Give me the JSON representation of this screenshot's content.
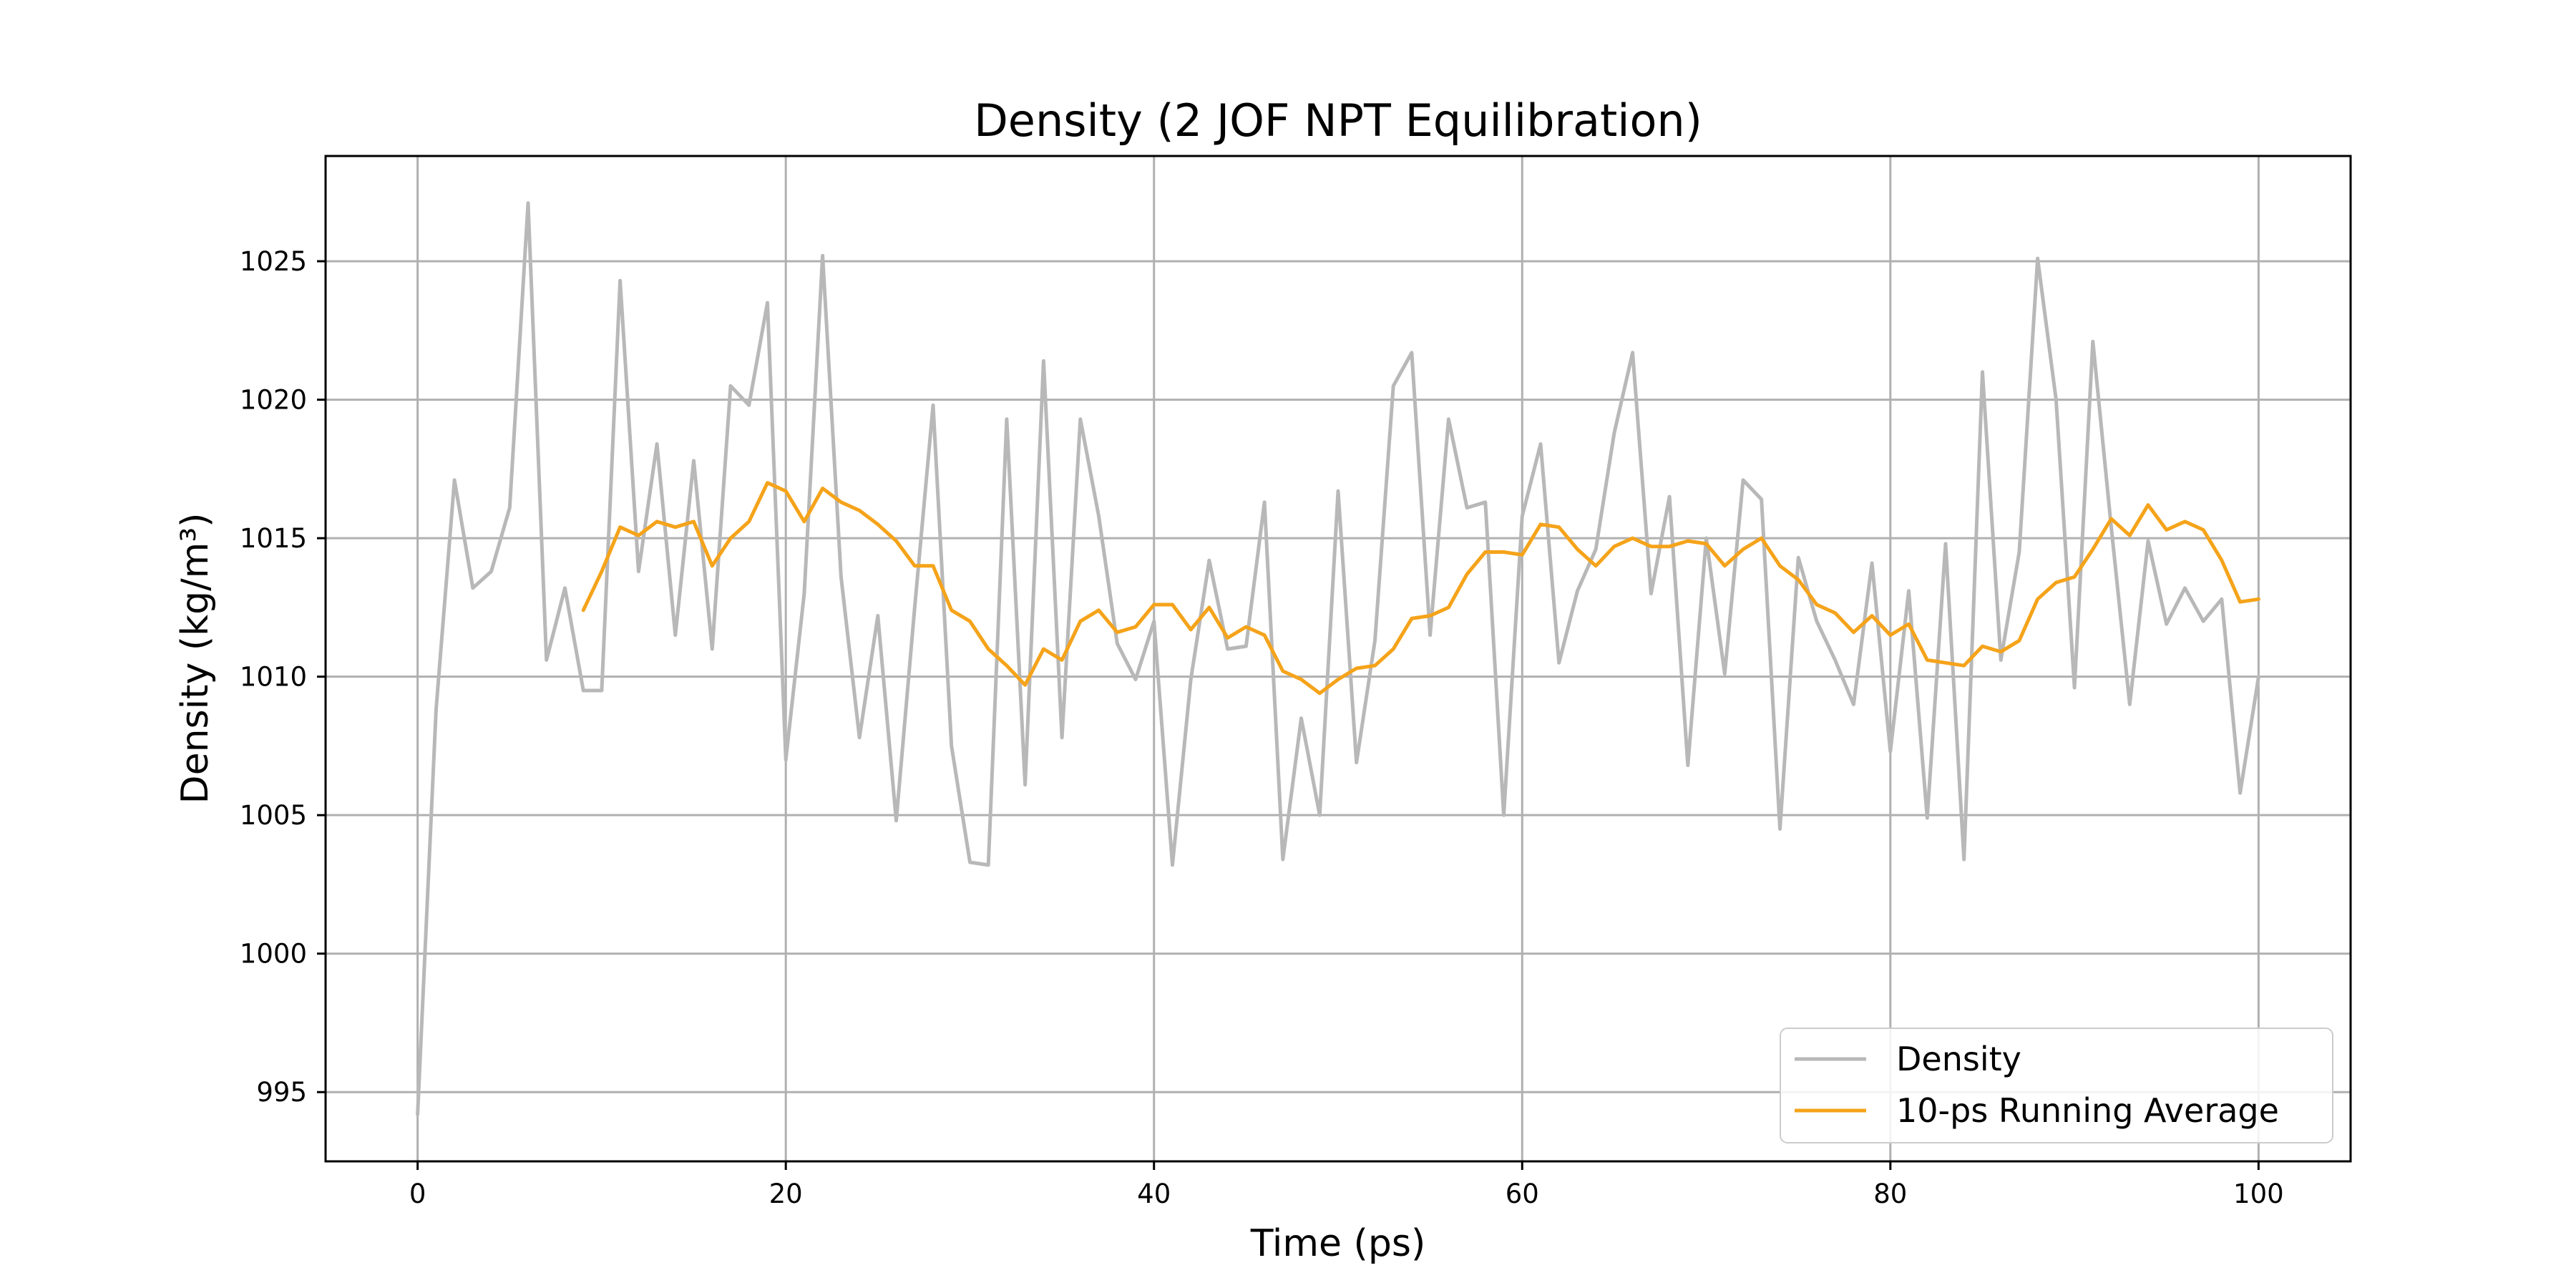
{
  "chart_data": {
    "type": "line",
    "title": "Density (2 JOF NPT Equilibration)",
    "xlabel": "Time (ps)",
    "ylabel": "Density (kg/m³)",
    "xlim": [
      -5,
      105
    ],
    "ylim": [
      992.5,
      1028.8
    ],
    "x_ticks": [
      0,
      20,
      40,
      60,
      80,
      100
    ],
    "y_ticks": [
      995,
      1000,
      1005,
      1010,
      1015,
      1020,
      1025
    ],
    "grid": true,
    "legend_position": "lower-right",
    "series": [
      {
        "name": "Density",
        "color": "#b8b8b8",
        "x": [
          0,
          1,
          2,
          3,
          4,
          5,
          6,
          7,
          8,
          9,
          10,
          11,
          12,
          13,
          14,
          15,
          16,
          17,
          18,
          19,
          20,
          21,
          22,
          23,
          24,
          25,
          26,
          27,
          28,
          29,
          30,
          31,
          32,
          33,
          34,
          35,
          36,
          37,
          38,
          39,
          40,
          41,
          42,
          43,
          44,
          45,
          46,
          47,
          48,
          49,
          50,
          51,
          52,
          53,
          54,
          55,
          56,
          57,
          58,
          59,
          60,
          61,
          62,
          63,
          64,
          65,
          66,
          67,
          68,
          69,
          70,
          71,
          72,
          73,
          74,
          75,
          76,
          77,
          78,
          79,
          80,
          81,
          82,
          83,
          84,
          85,
          86,
          87,
          88,
          89,
          90,
          91,
          92,
          93,
          94,
          95,
          96,
          97,
          98,
          99,
          100
        ],
        "y": [
          994.2,
          1008.8,
          1017.1,
          1013.2,
          1013.8,
          1016.1,
          1027.1,
          1010.6,
          1013.2,
          1009.5,
          1009.5,
          1024.3,
          1013.8,
          1018.4,
          1011.5,
          1017.8,
          1011.0,
          1020.5,
          1019.8,
          1023.5,
          1007.0,
          1013.0,
          1025.2,
          1013.6,
          1007.8,
          1012.2,
          1004.8,
          1012.5,
          1019.8,
          1007.5,
          1003.3,
          1003.2,
          1019.3,
          1006.1,
          1021.4,
          1007.8,
          1019.3,
          1015.8,
          1011.2,
          1009.9,
          1012.0,
          1003.2,
          1009.9,
          1014.2,
          1011.0,
          1011.1,
          1016.3,
          1003.4,
          1008.5,
          1005.0,
          1016.7,
          1006.9,
          1011.3,
          1020.5,
          1021.7,
          1011.5,
          1019.3,
          1016.1,
          1016.3,
          1005.0,
          1015.8,
          1018.4,
          1010.5,
          1013.1,
          1014.6,
          1018.8,
          1021.7,
          1013.0,
          1016.5,
          1006.8,
          1015.0,
          1010.1,
          1017.1,
          1016.4,
          1004.5,
          1014.3,
          1012.0,
          1010.6,
          1009.0,
          1014.1,
          1007.3,
          1013.1,
          1004.9,
          1014.8,
          1003.4,
          1021.0,
          1010.6,
          1014.5,
          1025.1,
          1020.0,
          1009.6,
          1022.1,
          1015.4,
          1009.0,
          1014.9,
          1011.9,
          1013.2,
          1012.0,
          1012.8,
          1005.8,
          1010.0
        ]
      },
      {
        "name": "10-ps Running Average",
        "color": "#f5a31a",
        "x": [
          9,
          10,
          11,
          12,
          13,
          14,
          15,
          16,
          17,
          18,
          19,
          20,
          21,
          22,
          23,
          24,
          25,
          26,
          27,
          28,
          29,
          30,
          31,
          32,
          33,
          34,
          35,
          36,
          37,
          38,
          39,
          40,
          41,
          42,
          43,
          44,
          45,
          46,
          47,
          48,
          49,
          50,
          51,
          52,
          53,
          54,
          55,
          56,
          57,
          58,
          59,
          60,
          61,
          62,
          63,
          64,
          65,
          66,
          67,
          68,
          69,
          70,
          71,
          72,
          73,
          74,
          75,
          76,
          77,
          78,
          79,
          80,
          81,
          82,
          83,
          84,
          85,
          86,
          87,
          88,
          89,
          90,
          91,
          92,
          93,
          94,
          95,
          96,
          97,
          98,
          99,
          100
        ],
        "y": [
          1012.4,
          1013.8,
          1015.4,
          1015.1,
          1015.6,
          1015.4,
          1015.6,
          1014.0,
          1015.0,
          1015.6,
          1017.0,
          1016.7,
          1015.6,
          1016.8,
          1016.3,
          1016.0,
          1015.5,
          1014.9,
          1014.0,
          1014.0,
          1012.4,
          1012.0,
          1011.0,
          1010.4,
          1009.7,
          1011.0,
          1010.6,
          1012.0,
          1012.4,
          1011.6,
          1011.8,
          1012.6,
          1012.6,
          1011.7,
          1012.5,
          1011.4,
          1011.8,
          1011.5,
          1010.2,
          1009.9,
          1009.4,
          1009.9,
          1010.3,
          1010.4,
          1011.0,
          1012.1,
          1012.2,
          1012.5,
          1013.7,
          1014.5,
          1014.5,
          1014.4,
          1015.5,
          1015.4,
          1014.6,
          1014.0,
          1014.7,
          1015.0,
          1014.7,
          1014.7,
          1014.9,
          1014.8,
          1014.0,
          1014.6,
          1015.0,
          1014.0,
          1013.5,
          1012.6,
          1012.3,
          1011.6,
          1012.2,
          1011.5,
          1011.9,
          1010.6,
          1010.5,
          1010.4,
          1011.1,
          1010.9,
          1011.3,
          1012.8,
          1013.4,
          1013.6,
          1014.6,
          1015.7,
          1015.1,
          1016.2,
          1015.3,
          1015.6,
          1015.3,
          1014.2,
          1012.7,
          1012.8
        ]
      }
    ]
  }
}
